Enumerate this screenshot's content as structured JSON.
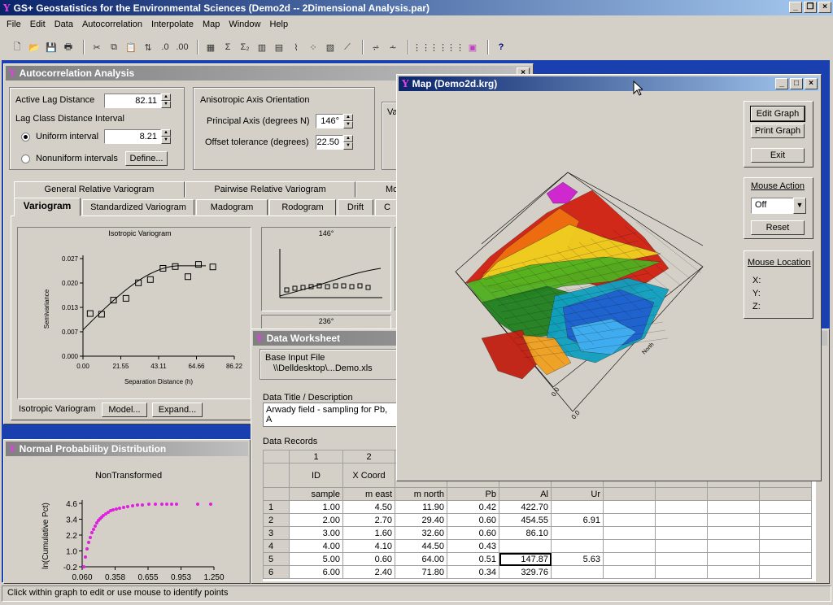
{
  "app": {
    "title": "GS+ Geostatistics for the Environmental Sciences (Demo2d -- 2Dimensional Analysis.par)"
  },
  "menu": [
    "File",
    "Edit",
    "Data",
    "Autocorrelation",
    "Interpolate",
    "Map",
    "Window",
    "Help"
  ],
  "autocorr": {
    "title": "Autocorrelation Analysis",
    "active_lag_label": "Active Lag Distance",
    "active_lag_value": "82.11",
    "lag_class_label": "Lag Class Distance Interval",
    "uniform_label": "Uniform interval",
    "uniform_value": "8.21",
    "nonuniform_label": "Nonuniform intervals",
    "define_label": "Define...",
    "aniso_title": "Anisotropic Axis Orientation",
    "principal_label": "Principal Axis (degrees N)",
    "principal_value": "146°",
    "offset_label": "Offset tolerance (degrees)",
    "offset_value": "22.50",
    "va_label": "Va",
    "tabs_back": [
      "General Relative Variogram",
      "Pairwise Relative Variogram",
      "Mo"
    ],
    "tabs_front": [
      "Variogram",
      "Standardized Variogram",
      "Madogram",
      "Rodogram",
      "Drift",
      "C"
    ],
    "iso_title": "Isotropic Variogram",
    "iso_caption": "Isotropic Variogram",
    "model_label": "Model...",
    "expand_label": "Expand...",
    "aniso1_title": "146°",
    "aniso2_title": "236°"
  },
  "map": {
    "title": "Map (Demo2d.krg)",
    "edit_graph": "Edit Graph",
    "print_graph": "Print Graph",
    "exit": "Exit",
    "mouse_action_label": "Mouse Action",
    "mouse_action_value": "Off",
    "reset": "Reset",
    "mouse_location_label": "Mouse Location",
    "x_label": "X:",
    "y_label": "Y:",
    "z_label": "Z:",
    "axis_labels": {
      "axis_a": "0.0",
      "axis_b": "0.0",
      "north": "North"
    }
  },
  "worksheet": {
    "title": "Data Worksheet",
    "base_input_label": "Base Input File",
    "base_input_value": "\\\\Delldesktop\\...Demo.xls",
    "data_title_label": "Data Title / Description",
    "data_title_value": "Arwady field - sampling for Pb, A",
    "records_label": "Data Records",
    "col_numbers": [
      "1",
      "2",
      "",
      "",
      "",
      "",
      ""
    ],
    "col_names": [
      "ID",
      "X Coord",
      "",
      "",
      "",
      "",
      ""
    ],
    "col_units": [
      "sample",
      "m east",
      "m north",
      "Pb",
      "Al",
      "Ur",
      ""
    ],
    "rows": [
      {
        "n": "1",
        "c": [
          "1.00",
          "4.50",
          "11.90",
          "0.42",
          "422.70",
          "",
          ""
        ]
      },
      {
        "n": "2",
        "c": [
          "2.00",
          "2.70",
          "29.40",
          "0.60",
          "454.55",
          "6.91",
          ""
        ]
      },
      {
        "n": "3",
        "c": [
          "3.00",
          "1.60",
          "32.60",
          "0.60",
          "86.10",
          "",
          ""
        ]
      },
      {
        "n": "4",
        "c": [
          "4.00",
          "4.10",
          "44.50",
          "0.43",
          "",
          "",
          ""
        ]
      },
      {
        "n": "5",
        "c": [
          "5.00",
          "0.60",
          "64.00",
          "0.51",
          "147.87",
          "5.63",
          ""
        ]
      },
      {
        "n": "6",
        "c": [
          "6.00",
          "2.40",
          "71.80",
          "0.34",
          "329.76",
          "",
          ""
        ]
      }
    ]
  },
  "normal": {
    "title": "Normal Probabiliby Distribution",
    "subtitle": "NonTransformed",
    "ylabel": "ln(Cumulative Pct)"
  },
  "status": "Click within graph to edit or use mouse to identify points",
  "chart_data": [
    {
      "type": "scatter",
      "title": "Isotropic Variogram",
      "xlabel": "Separation Distance (h)",
      "ylabel": "Semivariance",
      "xticks": [
        "0.00",
        "21.55",
        "43.11",
        "64.66",
        "86.22"
      ],
      "yticks": [
        "0.000",
        "0.007",
        "0.013",
        "0.020",
        "0.027"
      ],
      "xlim": [
        0,
        86.22
      ],
      "ylim": [
        0,
        0.027
      ],
      "x": [
        4.1,
        10.6,
        17.4,
        24.5,
        31.6,
        38.4,
        45.6,
        52.6,
        59.8,
        65.8,
        74.0
      ],
      "y": [
        0.0118,
        0.0116,
        0.0155,
        0.016,
        0.0203,
        0.0212,
        0.0243,
        0.0248,
        0.022,
        0.0254,
        0.0247
      ],
      "model_curve": true
    },
    {
      "type": "scatter",
      "title": "NonTransformed",
      "ylabel": "ln(Cumulative Pct)",
      "xticks": [
        "0.060",
        "0.358",
        "0.655",
        "0.953",
        "1.250"
      ],
      "yticks": [
        "-0.2",
        "1.0",
        "2.2",
        "3.4",
        "4.6"
      ],
      "xlim": [
        0.06,
        1.25
      ],
      "ylim": [
        -0.2,
        4.6
      ]
    }
  ]
}
